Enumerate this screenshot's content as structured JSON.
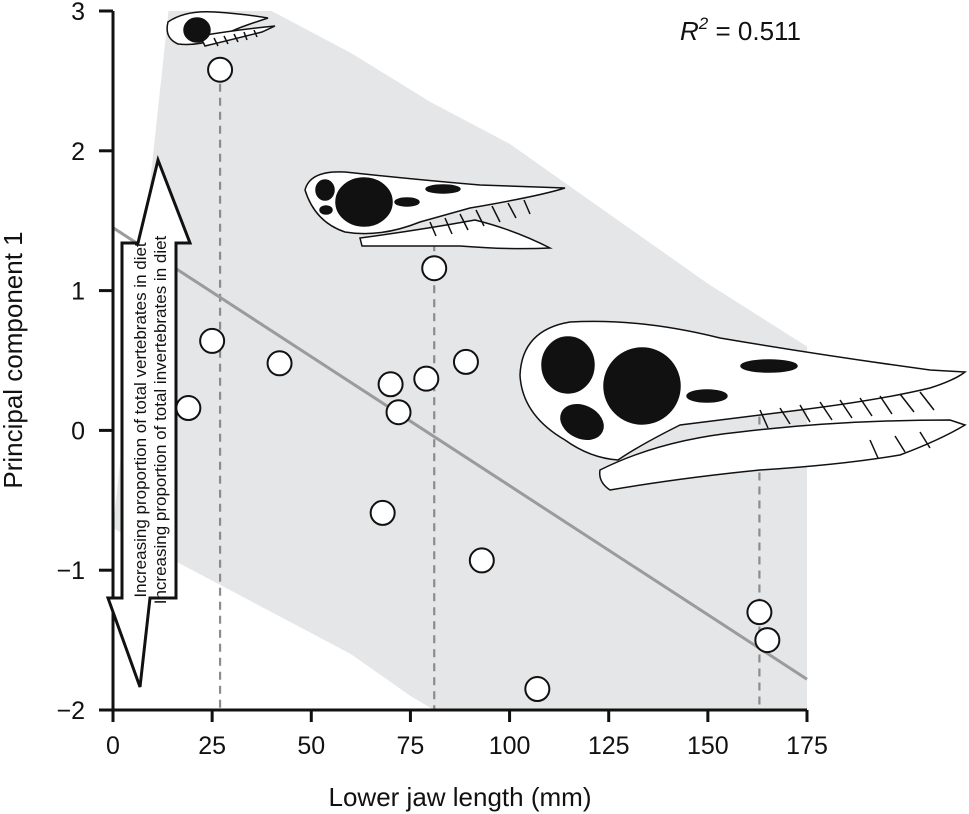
{
  "chart_data": {
    "type": "scatter",
    "xlabel": "Lower jaw length (mm)",
    "ylabel": "Principal component 1",
    "xlim": [
      0,
      175
    ],
    "ylim": [
      -2,
      3
    ],
    "x_ticks": [
      0,
      25,
      50,
      75,
      100,
      125,
      150,
      175
    ],
    "y_ticks": [
      -2,
      -1,
      0,
      1,
      2,
      3
    ],
    "x_tick_labels": [
      "0",
      "25",
      "50",
      "75",
      "100",
      "125",
      "150",
      "175"
    ],
    "y_tick_labels": [
      "−2",
      "−1",
      "0",
      "1",
      "2",
      "3"
    ],
    "annotation_r2": {
      "r": "R",
      "sup": "2",
      "rest": " = 0.511"
    },
    "arrow_labels": [
      "Increasing proportion of total vertebrates in diet",
      "Increasing proportion of total invertebrates in diet"
    ],
    "points": [
      {
        "x": 19,
        "y": 0.16
      },
      {
        "x": 25,
        "y": 0.64
      },
      {
        "x": 27,
        "y": 2.58
      },
      {
        "x": 42,
        "y": 0.48
      },
      {
        "x": 68,
        "y": -0.59
      },
      {
        "x": 70,
        "y": 0.33
      },
      {
        "x": 72,
        "y": 0.13
      },
      {
        "x": 79,
        "y": 0.37
      },
      {
        "x": 81,
        "y": 1.16
      },
      {
        "x": 89,
        "y": 0.49
      },
      {
        "x": 93,
        "y": -0.93
      },
      {
        "x": 107,
        "y": -1.85
      },
      {
        "x": 163,
        "y": -1.3
      },
      {
        "x": 165,
        "y": -1.5
      }
    ],
    "regression": {
      "x": [
        0,
        175
      ],
      "y": [
        1.45,
        -1.78
      ]
    },
    "band_upper": [
      [
        14,
        3
      ],
      [
        40,
        3
      ],
      [
        60,
        2.7
      ],
      [
        80,
        2.35
      ],
      [
        100,
        2.05
      ],
      [
        125,
        1.55
      ],
      [
        150,
        1.05
      ],
      [
        175,
        0.6
      ]
    ],
    "band_lower": [
      [
        0,
        -0.7
      ],
      [
        30,
        -1.15
      ],
      [
        60,
        -1.6
      ],
      [
        75,
        -1.9
      ],
      [
        81,
        -2
      ],
      [
        175,
        -2
      ]
    ],
    "dashed_lines_x": [
      27,
      81,
      163
    ],
    "colors": {
      "band": "#e5e6e8",
      "regression": "#9b9b9b",
      "dashed": "#8c8c8c",
      "points_fill": "#ffffff",
      "points_stroke": "#111111",
      "skull_fill": "#ffffff",
      "skull_dark": "#111111"
    }
  }
}
